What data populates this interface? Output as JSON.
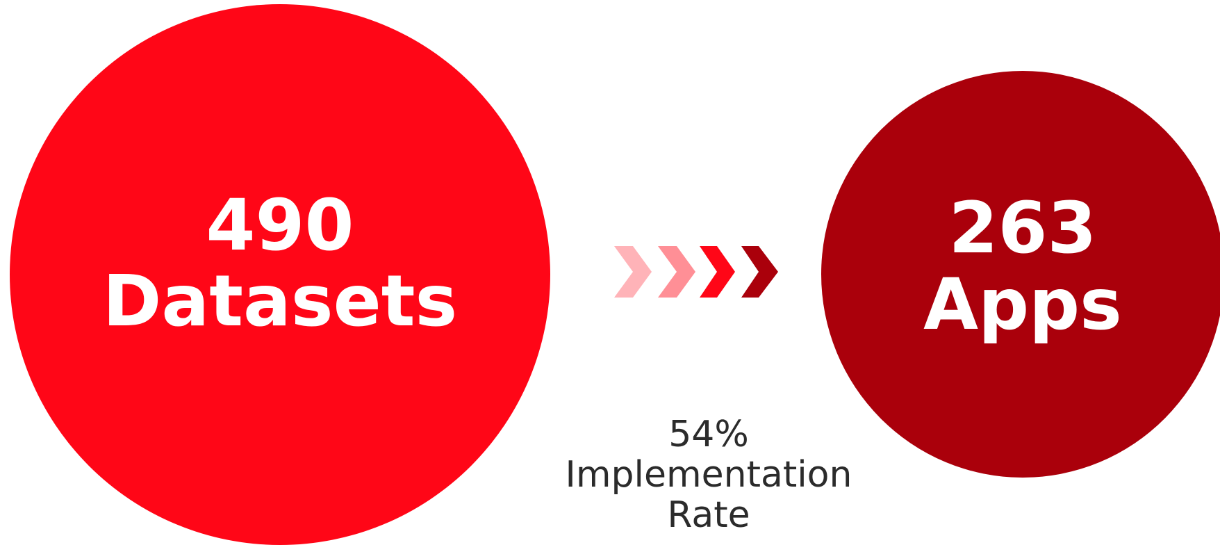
{
  "colors": {
    "background": "#ffffff",
    "datasets_circle": "#ff0617",
    "apps_circle": "#aa000b",
    "circle_text": "#ffffff",
    "caption_text": "#2b2b2b",
    "chevrons": [
      "#ffb3b8",
      "#ff8f96",
      "#ff0617",
      "#aa000b"
    ]
  },
  "datasets": {
    "count": "490",
    "label": "Datasets"
  },
  "apps": {
    "count": "263",
    "label": "Apps"
  },
  "flow": {
    "icon": "chevron-arrows",
    "chevron_count": 4
  },
  "rate": {
    "value": "54%",
    "label_line1": "Implementation",
    "label_line2": "Rate"
  }
}
